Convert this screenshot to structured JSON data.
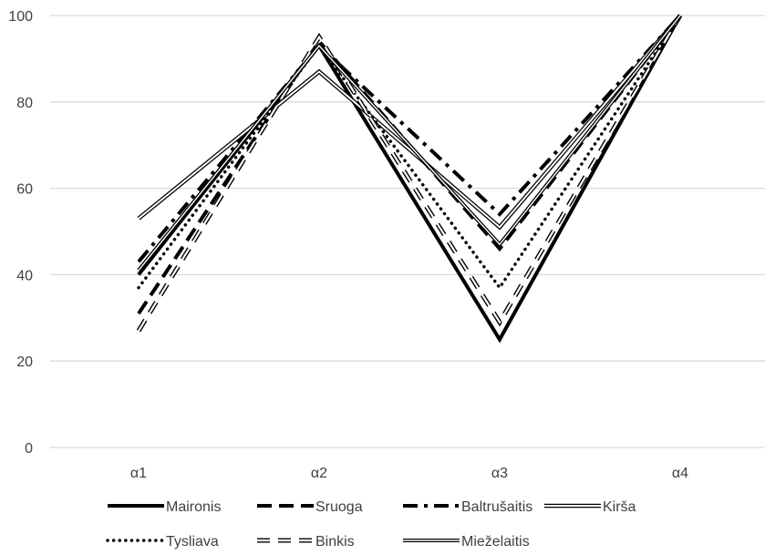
{
  "chart_data": {
    "type": "line",
    "title": "",
    "xlabel": "",
    "ylabel": "",
    "categories": [
      "α1",
      "α2",
      "α3",
      "α4"
    ],
    "ylim": [
      0,
      100
    ],
    "yticks": [
      0,
      20,
      40,
      60,
      80,
      100
    ],
    "grid": true,
    "legend": "bottom",
    "series": [
      {
        "name": "Maironis",
        "values": [
          40,
          93,
          25,
          100
        ],
        "style": "solid-thick"
      },
      {
        "name": "Sruoga",
        "values": [
          31,
          94,
          46,
          100
        ],
        "style": "dash-long"
      },
      {
        "name": "Baltrušaitis",
        "values": [
          43,
          93,
          54,
          100
        ],
        "style": "dash-dot"
      },
      {
        "name": "Kirša",
        "values": [
          53,
          87,
          51,
          100
        ],
        "style": "double"
      },
      {
        "name": "Tysliava",
        "values": [
          37,
          93,
          37,
          100
        ],
        "style": "dotted"
      },
      {
        "name": "Binkis",
        "values": [
          27,
          95,
          29,
          100
        ],
        "style": "double-dash"
      },
      {
        "name": "Mieželaitis",
        "values": [
          41,
          93,
          47,
          100
        ],
        "style": "double-thin"
      }
    ]
  }
}
